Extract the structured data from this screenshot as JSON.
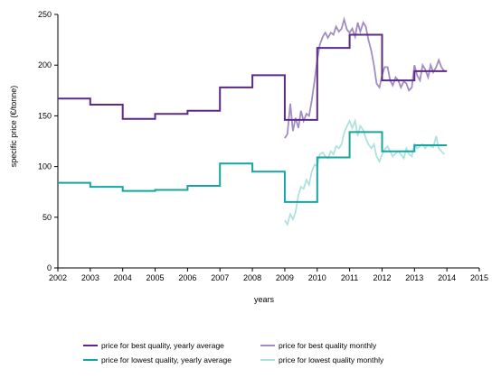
{
  "chart_data": {
    "type": "line",
    "title": "",
    "xlabel": "years",
    "ylabel": "specific price (€/tonne)",
    "xlim": [
      2002,
      2015
    ],
    "ylim": [
      0,
      250
    ],
    "xticks": [
      2002,
      2003,
      2004,
      2005,
      2006,
      2007,
      2008,
      2009,
      2010,
      2011,
      2012,
      2013,
      2014,
      2015
    ],
    "yticks": [
      0,
      50,
      100,
      150,
      200,
      250
    ],
    "grid": false,
    "legend_position": "bottom",
    "series": [
      {
        "name": "price for best quality, yearly average",
        "color": "#5b2a86",
        "style": "step",
        "x": [
          2002,
          2003,
          2004,
          2005,
          2006,
          2007,
          2008,
          2009,
          2010,
          2011,
          2012,
          2013,
          2014
        ],
        "y": [
          167,
          161,
          147,
          152,
          155,
          178,
          190,
          146,
          217,
          230,
          185,
          194,
          194
        ]
      },
      {
        "name": "price for best quality monthly",
        "color": "#a28cc4",
        "style": "line",
        "x": [
          2009.0,
          2009.08,
          2009.17,
          2009.25,
          2009.33,
          2009.42,
          2009.5,
          2009.58,
          2009.67,
          2009.75,
          2009.83,
          2009.92,
          2010.0,
          2010.08,
          2010.17,
          2010.25,
          2010.33,
          2010.42,
          2010.5,
          2010.58,
          2010.67,
          2010.75,
          2010.83,
          2010.92,
          2011.0,
          2011.08,
          2011.17,
          2011.25,
          2011.33,
          2011.42,
          2011.5,
          2011.58,
          2011.67,
          2011.75,
          2011.83,
          2011.92,
          2012.0,
          2012.08,
          2012.17,
          2012.25,
          2012.33,
          2012.42,
          2012.5,
          2012.58,
          2012.67,
          2012.75,
          2012.83,
          2012.92,
          2013.0,
          2013.08,
          2013.17,
          2013.25,
          2013.33,
          2013.42,
          2013.5,
          2013.58,
          2013.67,
          2013.75,
          2013.83,
          2013.92
        ],
        "y": [
          128,
          132,
          162,
          135,
          148,
          138,
          155,
          145,
          152,
          150,
          165,
          185,
          205,
          220,
          228,
          232,
          227,
          232,
          230,
          238,
          233,
          236,
          245,
          235,
          232,
          236,
          228,
          242,
          233,
          242,
          238,
          225,
          214,
          200,
          182,
          178,
          190,
          198,
          198,
          185,
          180,
          188,
          185,
          178,
          184,
          182,
          175,
          178,
          200,
          190,
          185,
          200,
          196,
          188,
          200,
          193,
          198,
          205,
          198,
          194
        ]
      },
      {
        "name": "price for lowest quality, yearly average",
        "color": "#17a5a2",
        "style": "step",
        "x": [
          2002,
          2003,
          2004,
          2005,
          2006,
          2007,
          2008,
          2009,
          2010,
          2011,
          2012,
          2013,
          2014
        ],
        "y": [
          84,
          80,
          76,
          77,
          81,
          103,
          95,
          65,
          109,
          134,
          115,
          121,
          121
        ]
      },
      {
        "name": "price for lowest quality monthly",
        "color": "#aee2df",
        "style": "line",
        "x": [
          2009.0,
          2009.08,
          2009.17,
          2009.25,
          2009.33,
          2009.42,
          2009.5,
          2009.58,
          2009.67,
          2009.75,
          2009.83,
          2009.92,
          2010.0,
          2010.08,
          2010.17,
          2010.25,
          2010.33,
          2010.42,
          2010.5,
          2010.58,
          2010.67,
          2010.75,
          2010.83,
          2010.92,
          2011.0,
          2011.08,
          2011.17,
          2011.25,
          2011.33,
          2011.42,
          2011.5,
          2011.58,
          2011.67,
          2011.75,
          2011.83,
          2011.92,
          2012.0,
          2012.08,
          2012.17,
          2012.25,
          2012.33,
          2012.42,
          2012.5,
          2012.58,
          2012.67,
          2012.75,
          2012.83,
          2012.92,
          2013.0,
          2013.08,
          2013.17,
          2013.25,
          2013.33,
          2013.42,
          2013.5,
          2013.58,
          2013.67,
          2013.75,
          2013.83,
          2013.92
        ],
        "y": [
          47,
          43,
          53,
          48,
          55,
          72,
          80,
          78,
          87,
          82,
          95,
          102,
          100,
          112,
          114,
          110,
          108,
          115,
          112,
          120,
          118,
          122,
          133,
          140,
          145,
          138,
          145,
          130,
          140,
          136,
          128,
          122,
          118,
          122,
          110,
          105,
          112,
          117,
          120,
          115,
          110,
          113,
          115,
          112,
          108,
          118,
          112,
          110,
          122,
          118,
          120,
          122,
          118,
          121,
          120,
          119,
          130,
          118,
          115,
          112
        ]
      }
    ]
  }
}
